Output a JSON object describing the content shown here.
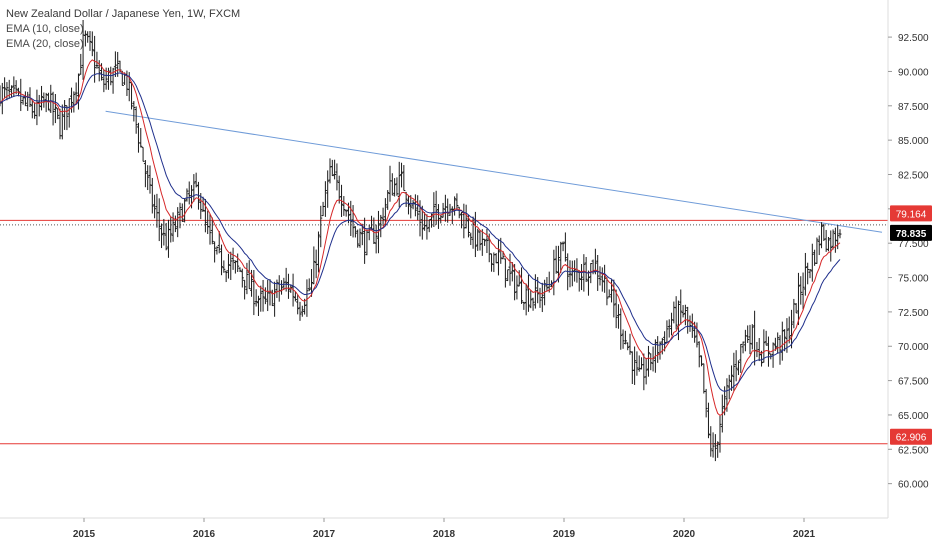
{
  "header": {
    "title": "New Zealand Dollar / Japanese Yen, 1W, FXCM",
    "indicators": [
      "EMA (10, close)",
      "EMA (20, close)"
    ]
  },
  "colors": {
    "candle": "#1a1a1a",
    "ema10": "#d62728",
    "ema20": "#1f2f8c",
    "trendline": "#6f9bd8",
    "hline": "#e53935",
    "price_tag": "#000000",
    "axis_text": "#333333"
  },
  "chart_data": {
    "type": "candlestick",
    "symbol": "NZDJPY",
    "timeframe": "1W",
    "source": "FXCM",
    "y_axis": {
      "range": [
        57.5,
        95.2
      ],
      "ticks": [
        60.0,
        62.5,
        65.0,
        67.5,
        70.0,
        72.5,
        75.0,
        77.5,
        80.0,
        82.5,
        85.0,
        87.5,
        90.0,
        92.5
      ],
      "tick_labels": [
        "60.000",
        "62.500",
        "65.000",
        "67.500",
        "70.000",
        "72.500",
        "75.000",
        "77.500",
        "80.000",
        "82.500",
        "85.000",
        "87.500",
        "90.000",
        "92.500"
      ],
      "side": "right"
    },
    "x_axis": {
      "range": [
        2014.3,
        2021.7
      ],
      "ticks": [
        2015,
        2016,
        2017,
        2018,
        2019,
        2020,
        2021
      ],
      "tick_labels": [
        "2015",
        "2016",
        "2017",
        "2018",
        "2019",
        "2020",
        "2021"
      ]
    },
    "price_levels": [
      {
        "value": 79.164,
        "label": "79.164",
        "style": "solid-red"
      },
      {
        "value": 78.835,
        "label": "78.835",
        "style": "dotted-last-price"
      },
      {
        "value": 62.906,
        "label": "62.906",
        "style": "solid-red"
      }
    ],
    "trendline": {
      "x": [
        2015.18,
        2021.65
      ],
      "y": [
        87.1,
        78.3
      ]
    },
    "price_path": {
      "x": [
        2014.3,
        2014.45,
        2014.6,
        2014.7,
        2014.8,
        2014.95,
        2015.0,
        2015.08,
        2015.15,
        2015.25,
        2015.35,
        2015.45,
        2015.55,
        2015.62,
        2015.68,
        2015.75,
        2015.85,
        2015.95,
        2016.0,
        2016.1,
        2016.2,
        2016.3,
        2016.4,
        2016.5,
        2016.6,
        2016.7,
        2016.8,
        2016.9,
        2017.0,
        2017.05,
        2017.15,
        2017.25,
        2017.35,
        2017.45,
        2017.55,
        2017.65,
        2017.75,
        2017.85,
        2017.95,
        2018.05,
        2018.15,
        2018.25,
        2018.35,
        2018.45,
        2018.55,
        2018.65,
        2018.75,
        2018.85,
        2018.95,
        2019.0,
        2019.05,
        2019.15,
        2019.25,
        2019.35,
        2019.45,
        2019.55,
        2019.62,
        2019.72,
        2019.82,
        2019.9,
        2020.0,
        2020.08,
        2020.15,
        2020.2,
        2020.25,
        2020.3,
        2020.4,
        2020.5,
        2020.55,
        2020.65,
        2020.75,
        2020.85,
        2020.95,
        2021.0,
        2021.05,
        2021.1,
        2021.15,
        2021.2,
        2021.25,
        2021.3
      ],
      "y": [
        88.5,
        88.0,
        87.0,
        88.0,
        86.0,
        89.5,
        92.5,
        91.0,
        89.0,
        90.0,
        89.5,
        85.5,
        81.0,
        79.0,
        77.5,
        78.5,
        80.5,
        81.5,
        79.0,
        76.5,
        76.0,
        75.5,
        74.0,
        73.0,
        74.0,
        74.5,
        73.0,
        74.5,
        80.5,
        82.5,
        81.0,
        78.5,
        77.5,
        78.5,
        81.5,
        82.0,
        80.0,
        78.5,
        80.0,
        80.5,
        79.5,
        78.0,
        77.0,
        76.5,
        75.0,
        74.0,
        73.5,
        74.0,
        76.5,
        77.0,
        75.0,
        75.5,
        76.0,
        74.5,
        72.0,
        69.5,
        67.5,
        69.0,
        70.5,
        72.0,
        72.5,
        70.5,
        68.0,
        63.5,
        62.0,
        64.5,
        68.0,
        70.5,
        71.0,
        69.5,
        70.0,
        70.5,
        73.5,
        75.0,
        76.0,
        77.0,
        78.5,
        77.5,
        78.0,
        78.835
      ]
    },
    "series": [
      {
        "name": "EMA (10, close)",
        "color": "#d62728"
      },
      {
        "name": "EMA (20, close)",
        "color": "#1f2f8c"
      }
    ]
  }
}
